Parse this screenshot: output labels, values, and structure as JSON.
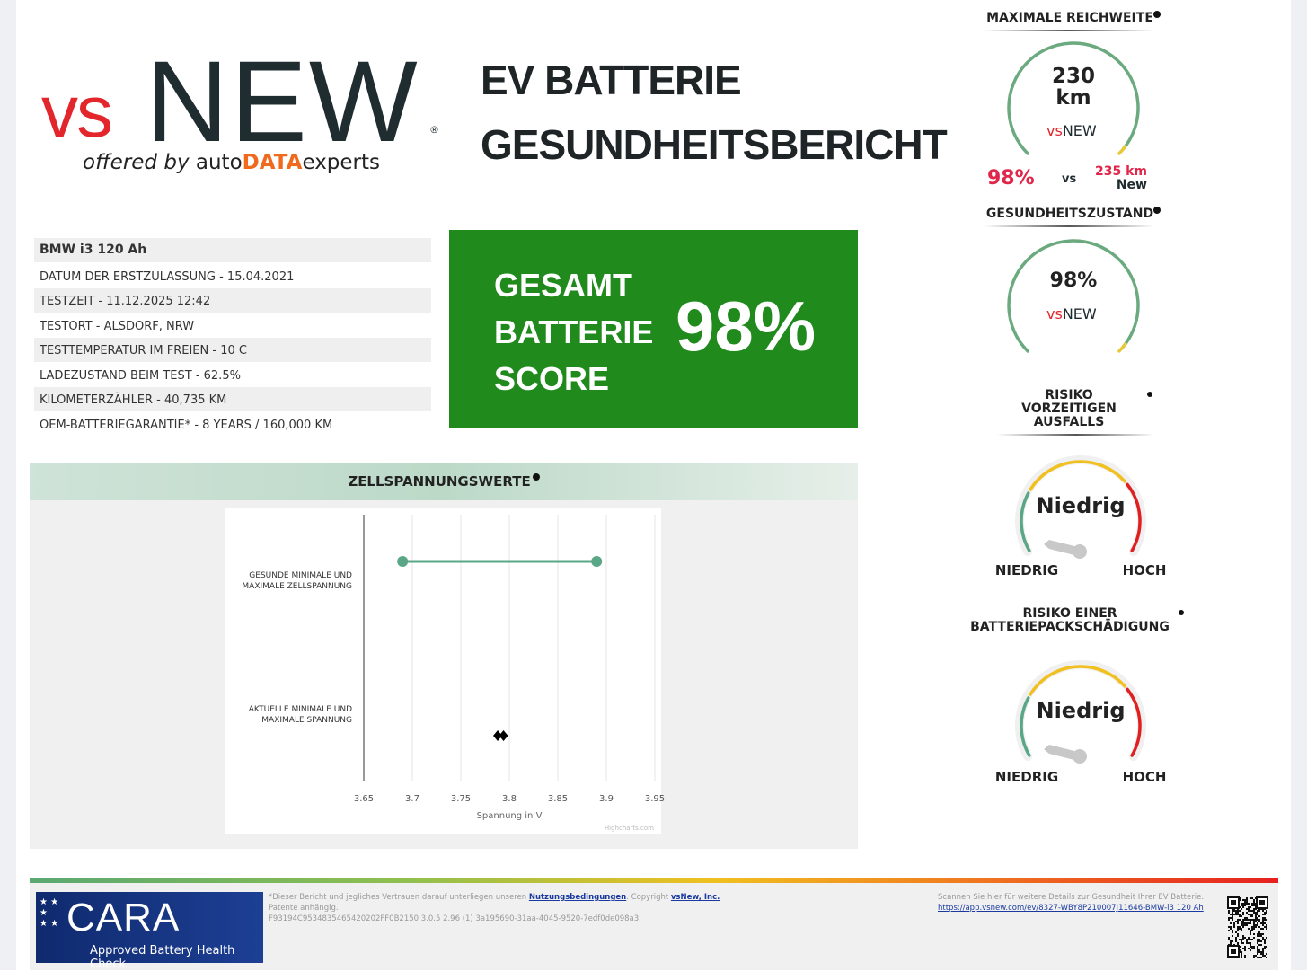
{
  "logo": {
    "vs": "vs",
    "new": "NEW",
    "offered": "offered by",
    "auto": "auto",
    "data": "DATA",
    "experts": "experts",
    "reg": "®"
  },
  "title": {
    "line1": "EV BATTERIE",
    "line2": "GESUNDHEITSBERICHT"
  },
  "vehicle": {
    "name": "BMW i3 120 Ah",
    "rows": [
      "DATUM DER ERSTZULASSUNG - 15.04.2021",
      "TESTZEIT - 11.12.2025 12:42",
      "TESTORT - ALSDORF, NRW",
      "TESTTEMPERATUR IM FREIEN - 10 C",
      "LADEZUSTAND BEIM TEST - 62.5%",
      "KILOMETERZÄHLER - 40,735 KM",
      "OEM-BATTERIEGARANTIE* - 8 YEARS / 160,000 KM"
    ]
  },
  "score": {
    "l1": "GESAMT",
    "l2": "BATTERIE",
    "l3": "SCORE",
    "value": "98%",
    "color": "#218a1c"
  },
  "range": {
    "heading": "MAXIMALE REICHWEITE",
    "value": "230",
    "unit": "km",
    "percent": "98%",
    "vs": "vs",
    "new_value": "235 km",
    "new_label": "New",
    "fill": 0.98
  },
  "health": {
    "heading": "GESUNDHEITSZUSTAND",
    "value": "98%",
    "fill": 0.98
  },
  "risk1": {
    "heading1": "RISIKO",
    "heading2": "VORZEITIGEN",
    "heading3": "AUSFALLS",
    "value": "Niedrig",
    "low": "NIEDRIG",
    "high": "HOCH"
  },
  "risk2": {
    "heading1": "RISIKO EINER",
    "heading2": "BATTERIEPACKSCHÄDIGUNG",
    "value": "Niedrig",
    "low": "NIEDRIG",
    "high": "HOCH"
  },
  "chart_title": "ZELLSPANNUNGSWERTE",
  "chart_data": {
    "type": "dumbbell",
    "xlabel": "Spannung in V",
    "xlim": [
      3.65,
      3.95
    ],
    "ticks": [
      "3.65",
      "3.7",
      "3.75",
      "3.8",
      "3.85",
      "3.9",
      "3.95"
    ],
    "categories": [
      [
        "GESUNDE MINIMALE UND",
        "MAXIMALE ZELLSPANNUNG"
      ],
      [
        "AKTUELLE MINIMALE UND",
        "MAXIMALE SPANNUNG"
      ]
    ],
    "series": [
      {
        "low": 3.69,
        "high": 3.89,
        "color": "#5aa787"
      },
      {
        "low": 3.788,
        "high": 3.794,
        "color": "#000000"
      }
    ],
    "credit": "Highcharts.com",
    "grid": true
  },
  "footer": {
    "disclaimer": "*Dieser Bericht und jegliches Vertrauen darauf unterliegen unseren",
    "terms": "Nutzungsbedingungen",
    "copyright": ". Copyright",
    "company": "vsNew, Inc.",
    "patent": "Patente anhängig.",
    "id": "F93194C9534835465420202FF0B2150 3.0.5 2.96 (1) 3a195690-31aa-4045-9520-7edf0de098a3",
    "scan": "Scannen Sie hier für weitere Details zur Gesundheit Ihrer EV Batterie.",
    "url": "https://app.vsnew.com/ev/8327-WBY8P210007J11646-BMW-i3 120 Ah",
    "cara": "CARA",
    "cara_sub": "Approved Battery Health Check"
  }
}
